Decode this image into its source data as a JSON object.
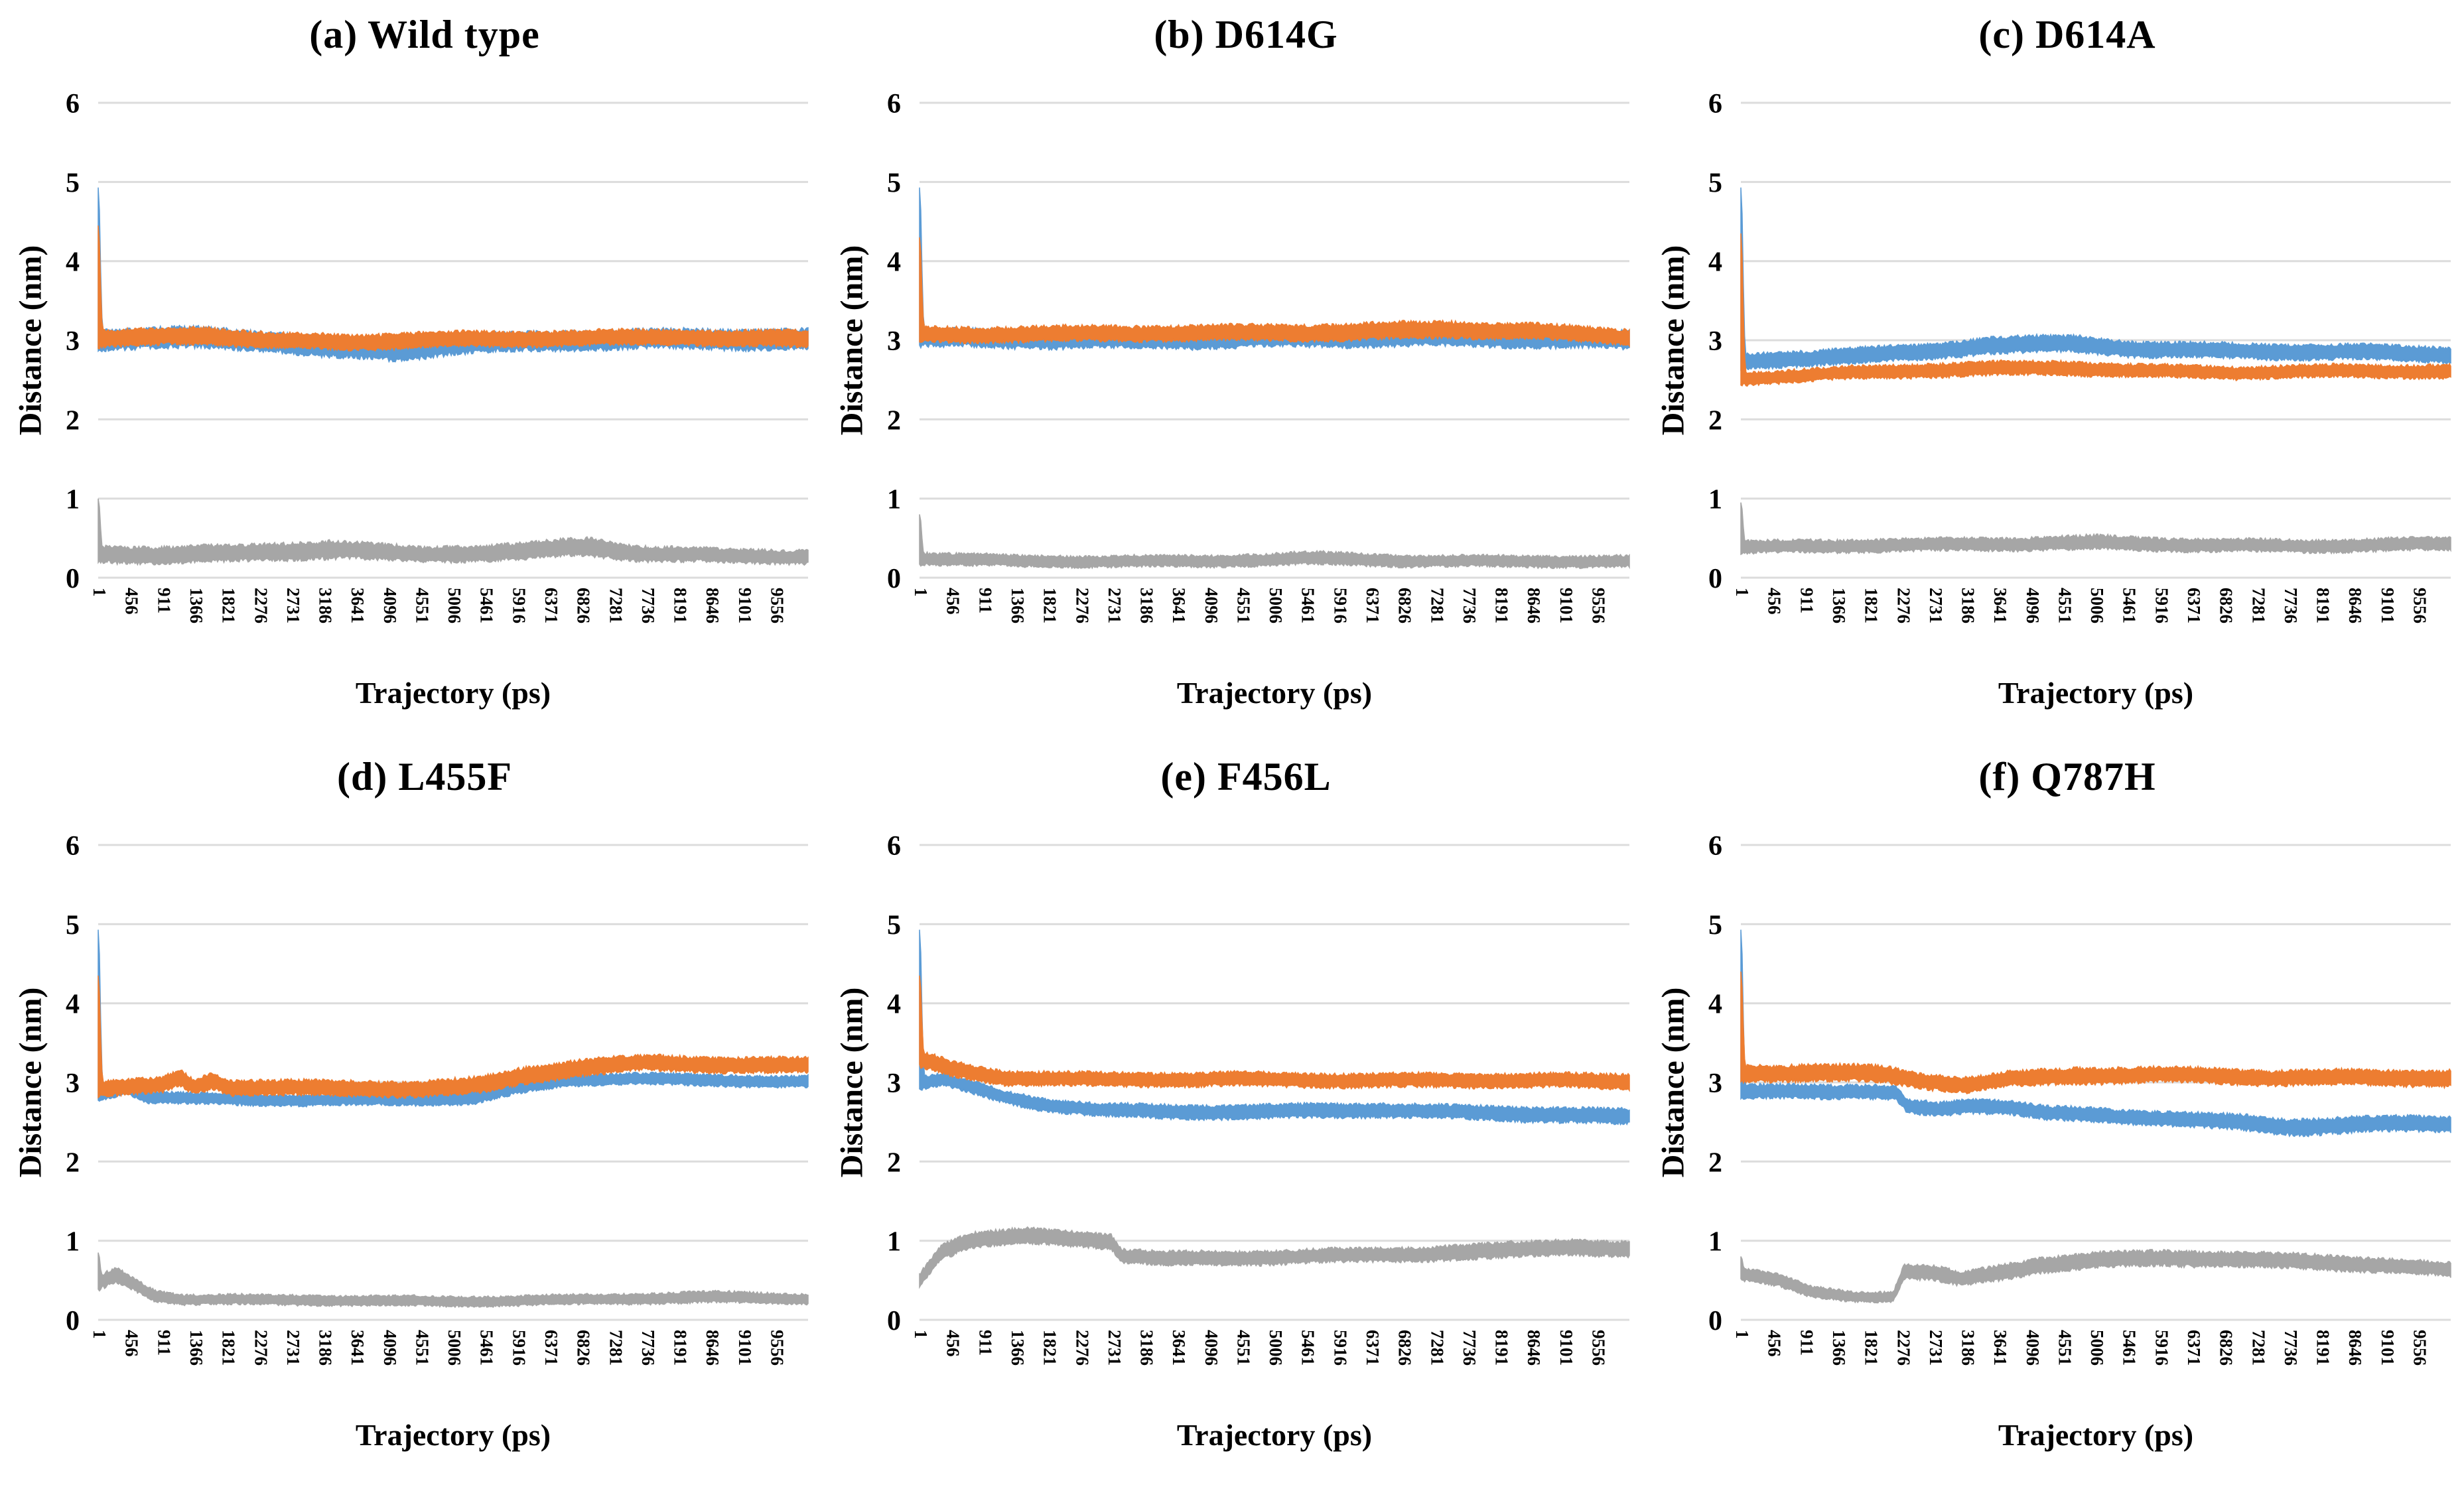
{
  "figure": {
    "background": "#FFFFFF",
    "rows": 2,
    "cols": 3,
    "legend": "none"
  },
  "colors": {
    "blue": "#5B9BD5",
    "orange": "#ED7D31",
    "gray": "#A6A6A6",
    "gridline": "#DCDCDC",
    "text": "#000000"
  },
  "axes": {
    "y": {
      "label": "Distance (nm)",
      "min": 0,
      "max": 6,
      "ticks": [
        "0",
        "1",
        "2",
        "3",
        "4",
        "5",
        "6"
      ],
      "grid": "on"
    },
    "x": {
      "label": "Trajectory (ps)",
      "tick_labels": [
        "1",
        "456",
        "911",
        "1366",
        "1821",
        "2276",
        "2731",
        "3186",
        "3641",
        "4096",
        "4551",
        "5006",
        "5461",
        "5916",
        "6371",
        "6826",
        "7281",
        "7736",
        "8191",
        "8646",
        "9101",
        "9556"
      ],
      "tick_start": 1,
      "tick_step": 455,
      "axis_max_ps": 10010
    }
  },
  "chart_data": [
    {
      "id": "a",
      "title": "(a) Wild type",
      "type": "area",
      "x_unit": "ps",
      "y_unit": "nm",
      "series": [
        {
          "name": "gray",
          "color": "gray",
          "spike": 1.0,
          "keyframes": [
            [
              0,
              0.3,
              0.13
            ],
            [
              2000,
              0.3,
              0.13
            ],
            [
              3300,
              0.35,
              0.14
            ],
            [
              4500,
              0.28,
              0.12
            ],
            [
              6000,
              0.33,
              0.13
            ],
            [
              6900,
              0.4,
              0.14
            ],
            [
              7600,
              0.32,
              0.12
            ],
            [
              9000,
              0.28,
              0.11
            ],
            [
              10010,
              0.27,
              0.11
            ]
          ]
        },
        {
          "name": "blue",
          "color": "blue",
          "spike": 4.93,
          "keyframes": [
            [
              0,
              3.0,
              0.16
            ],
            [
              1500,
              3.02,
              0.16
            ],
            [
              2300,
              3.0,
              0.15
            ],
            [
              3200,
              2.92,
              0.16
            ],
            [
              4200,
              2.88,
              0.15
            ],
            [
              5000,
              2.95,
              0.14
            ],
            [
              6500,
              3.0,
              0.15
            ],
            [
              8000,
              3.0,
              0.15
            ],
            [
              10010,
              3.0,
              0.16
            ]
          ]
        },
        {
          "name": "orange",
          "color": "orange",
          "spike": 4.45,
          "keyframes": [
            [
              0,
              3.02,
              0.13
            ],
            [
              1500,
              3.08,
              0.13
            ],
            [
              2400,
              3.0,
              0.12
            ],
            [
              3500,
              2.97,
              0.12
            ],
            [
              5000,
              3.0,
              0.12
            ],
            [
              6500,
              3.02,
              0.12
            ],
            [
              8200,
              3.05,
              0.12
            ],
            [
              10010,
              3.02,
              0.13
            ]
          ]
        }
      ]
    },
    {
      "id": "b",
      "title": "(b) D614G",
      "type": "area",
      "x_unit": "ps",
      "y_unit": "nm",
      "series": [
        {
          "name": "gray",
          "color": "gray",
          "spike": 0.8,
          "keyframes": [
            [
              0,
              0.25,
              0.1
            ],
            [
              1500,
              0.2,
              0.09
            ],
            [
              4000,
              0.2,
              0.09
            ],
            [
              5500,
              0.25,
              0.1
            ],
            [
              7000,
              0.22,
              0.09
            ],
            [
              10010,
              0.2,
              0.09
            ]
          ]
        },
        {
          "name": "blue",
          "color": "blue",
          "spike": 4.93,
          "keyframes": [
            [
              0,
              3.02,
              0.14
            ],
            [
              2000,
              3.02,
              0.14
            ],
            [
              5000,
              3.03,
              0.14
            ],
            [
              8000,
              3.02,
              0.14
            ],
            [
              10010,
              3.0,
              0.14
            ]
          ]
        },
        {
          "name": "orange",
          "color": "orange",
          "spike": 4.3,
          "keyframes": [
            [
              0,
              3.08,
              0.12
            ],
            [
              2000,
              3.08,
              0.12
            ],
            [
              4000,
              3.08,
              0.12
            ],
            [
              6000,
              3.1,
              0.13
            ],
            [
              7500,
              3.15,
              0.13
            ],
            [
              8700,
              3.12,
              0.12
            ],
            [
              10010,
              3.05,
              0.12
            ]
          ]
        }
      ]
    },
    {
      "id": "c",
      "title": "(c) D614A",
      "type": "area",
      "x_unit": "ps",
      "y_unit": "nm",
      "series": [
        {
          "name": "gray",
          "color": "gray",
          "spike": 0.95,
          "keyframes": [
            [
              0,
              0.38,
              0.1
            ],
            [
              2000,
              0.4,
              0.1
            ],
            [
              3500,
              0.42,
              0.1
            ],
            [
              5000,
              0.45,
              0.11
            ],
            [
              6500,
              0.42,
              0.1
            ],
            [
              8000,
              0.4,
              0.1
            ],
            [
              10010,
              0.42,
              0.1
            ]
          ]
        },
        {
          "name": "blue",
          "color": "blue",
          "spike": 4.93,
          "keyframes": [
            [
              0,
              2.72,
              0.12
            ],
            [
              1200,
              2.8,
              0.12
            ],
            [
              2500,
              2.85,
              0.12
            ],
            [
              3500,
              2.95,
              0.13
            ],
            [
              4700,
              2.95,
              0.13
            ],
            [
              5600,
              2.88,
              0.12
            ],
            [
              7000,
              2.85,
              0.12
            ],
            [
              8500,
              2.85,
              0.12
            ],
            [
              10010,
              2.83,
              0.12
            ]
          ]
        },
        {
          "name": "orange",
          "color": "orange",
          "spike": 4.35,
          "keyframes": [
            [
              0,
              2.52,
              0.1
            ],
            [
              1500,
              2.58,
              0.1
            ],
            [
              3000,
              2.62,
              0.11
            ],
            [
              4500,
              2.65,
              0.11
            ],
            [
              5500,
              2.62,
              0.1
            ],
            [
              7000,
              2.6,
              0.1
            ],
            [
              8500,
              2.62,
              0.1
            ],
            [
              10010,
              2.6,
              0.11
            ]
          ]
        }
      ]
    },
    {
      "id": "d",
      "title": "(d) L455F",
      "type": "area",
      "x_unit": "ps",
      "y_unit": "nm",
      "series": [
        {
          "name": "gray",
          "color": "gray",
          "spike": 0.85,
          "keyframes": [
            [
              0,
              0.45,
              0.12
            ],
            [
              250,
              0.55,
              0.12
            ],
            [
              500,
              0.45,
              0.1
            ],
            [
              800,
              0.3,
              0.09
            ],
            [
              1200,
              0.25,
              0.08
            ],
            [
              3000,
              0.25,
              0.08
            ],
            [
              5000,
              0.24,
              0.08
            ],
            [
              7000,
              0.26,
              0.08
            ],
            [
              8500,
              0.28,
              0.09
            ],
            [
              10010,
              0.26,
              0.08
            ]
          ]
        },
        {
          "name": "blue",
          "color": "blue",
          "spike": 4.93,
          "keyframes": [
            [
              0,
              2.85,
              0.1
            ],
            [
              400,
              2.95,
              0.1
            ],
            [
              700,
              2.82,
              0.09
            ],
            [
              1500,
              2.8,
              0.09
            ],
            [
              3000,
              2.78,
              0.09
            ],
            [
              4500,
              2.78,
              0.09
            ],
            [
              5300,
              2.8,
              0.1
            ],
            [
              5900,
              2.92,
              0.1
            ],
            [
              6600,
              3.02,
              0.09
            ],
            [
              7500,
              3.05,
              0.09
            ],
            [
              8500,
              3.03,
              0.09
            ],
            [
              10010,
              3.02,
              0.09
            ]
          ]
        },
        {
          "name": "orange",
          "color": "orange",
          "spike": 4.35,
          "keyframes": [
            [
              0,
              2.92,
              0.12
            ],
            [
              900,
              2.95,
              0.12
            ],
            [
              1150,
              3.05,
              0.13
            ],
            [
              1350,
              2.93,
              0.12
            ],
            [
              1600,
              3.02,
              0.13
            ],
            [
              1850,
              2.93,
              0.12
            ],
            [
              3000,
              2.92,
              0.12
            ],
            [
              4500,
              2.92,
              0.12
            ],
            [
              5400,
              2.97,
              0.13
            ],
            [
              6000,
              3.1,
              0.13
            ],
            [
              6800,
              3.2,
              0.13
            ],
            [
              7800,
              3.25,
              0.12
            ],
            [
              8800,
              3.22,
              0.12
            ],
            [
              10010,
              3.2,
              0.12
            ]
          ]
        }
      ]
    },
    {
      "id": "e",
      "title": "(e) F456L",
      "type": "area",
      "x_unit": "ps",
      "y_unit": "nm",
      "series": [
        {
          "name": "gray",
          "color": "gray",
          "spike": null,
          "keyframes": [
            [
              0,
              0.5,
              0.1
            ],
            [
              300,
              0.85,
              0.12
            ],
            [
              700,
              1.0,
              0.12
            ],
            [
              1500,
              1.05,
              0.12
            ],
            [
              2300,
              1.03,
              0.12
            ],
            [
              2700,
              1.0,
              0.12
            ],
            [
              2850,
              0.82,
              0.11
            ],
            [
              3500,
              0.78,
              0.11
            ],
            [
              5000,
              0.8,
              0.11
            ],
            [
              6500,
              0.82,
              0.11
            ],
            [
              8000,
              0.85,
              0.12
            ],
            [
              9200,
              0.92,
              0.12
            ],
            [
              10010,
              0.88,
              0.12
            ]
          ]
        },
        {
          "name": "blue",
          "color": "blue",
          "spike": 4.93,
          "keyframes": [
            [
              0,
              3.0,
              0.1
            ],
            [
              350,
              3.05,
              0.1
            ],
            [
              700,
              2.95,
              0.1
            ],
            [
              1200,
              2.82,
              0.1
            ],
            [
              1800,
              2.72,
              0.1
            ],
            [
              2600,
              2.65,
              0.1
            ],
            [
              3500,
              2.62,
              0.11
            ],
            [
              5000,
              2.62,
              0.11
            ],
            [
              6500,
              2.65,
              0.11
            ],
            [
              8000,
              2.62,
              0.11
            ],
            [
              9200,
              2.6,
              0.12
            ],
            [
              10010,
              2.57,
              0.12
            ]
          ]
        },
        {
          "name": "orange",
          "color": "orange",
          "spike": 4.35,
          "keyframes": [
            [
              0,
              3.28,
              0.13
            ],
            [
              500,
              3.15,
              0.12
            ],
            [
              1200,
              3.05,
              0.11
            ],
            [
              2500,
              3.03,
              0.11
            ],
            [
              4500,
              3.05,
              0.11
            ],
            [
              6500,
              3.03,
              0.11
            ],
            [
              8500,
              3.02,
              0.11
            ],
            [
              10010,
              3.0,
              0.12
            ]
          ]
        }
      ]
    },
    {
      "id": "f",
      "title": "(f) Q787H",
      "type": "area",
      "x_unit": "ps",
      "y_unit": "nm",
      "series": [
        {
          "name": "gray",
          "color": "gray",
          "spike": 0.8,
          "keyframes": [
            [
              0,
              0.58,
              0.1
            ],
            [
              500,
              0.5,
              0.1
            ],
            [
              1000,
              0.35,
              0.09
            ],
            [
              1600,
              0.3,
              0.08
            ],
            [
              2150,
              0.3,
              0.08
            ],
            [
              2300,
              0.62,
              0.11
            ],
            [
              2700,
              0.6,
              0.12
            ],
            [
              3100,
              0.52,
              0.11
            ],
            [
              3600,
              0.6,
              0.12
            ],
            [
              4200,
              0.7,
              0.12
            ],
            [
              5000,
              0.75,
              0.12
            ],
            [
              6000,
              0.78,
              0.12
            ],
            [
              7000,
              0.75,
              0.12
            ],
            [
              8200,
              0.72,
              0.12
            ],
            [
              9200,
              0.68,
              0.11
            ],
            [
              10010,
              0.63,
              0.11
            ]
          ]
        },
        {
          "name": "blue",
          "color": "blue",
          "spike": 4.93,
          "keyframes": [
            [
              0,
              2.88,
              0.11
            ],
            [
              800,
              2.9,
              0.11
            ],
            [
              1800,
              2.88,
              0.11
            ],
            [
              2200,
              2.85,
              0.11
            ],
            [
              2350,
              2.68,
              0.11
            ],
            [
              2800,
              2.65,
              0.11
            ],
            [
              3200,
              2.7,
              0.11
            ],
            [
              3800,
              2.68,
              0.11
            ],
            [
              4300,
              2.6,
              0.11
            ],
            [
              5000,
              2.58,
              0.11
            ],
            [
              6000,
              2.55,
              0.11
            ],
            [
              7000,
              2.5,
              0.12
            ],
            [
              7800,
              2.45,
              0.13
            ],
            [
              8800,
              2.48,
              0.12
            ],
            [
              10010,
              2.48,
              0.12
            ]
          ]
        },
        {
          "name": "orange",
          "color": "orange",
          "spike": 4.4,
          "keyframes": [
            [
              0,
              3.1,
              0.13
            ],
            [
              1000,
              3.12,
              0.13
            ],
            [
              2000,
              3.1,
              0.13
            ],
            [
              2600,
              3.02,
              0.12
            ],
            [
              3200,
              2.98,
              0.12
            ],
            [
              3800,
              3.05,
              0.12
            ],
            [
              4800,
              3.1,
              0.13
            ],
            [
              6000,
              3.1,
              0.12
            ],
            [
              7500,
              3.05,
              0.12
            ],
            [
              9000,
              3.05,
              0.12
            ],
            [
              10010,
              3.05,
              0.13
            ]
          ]
        }
      ]
    }
  ]
}
